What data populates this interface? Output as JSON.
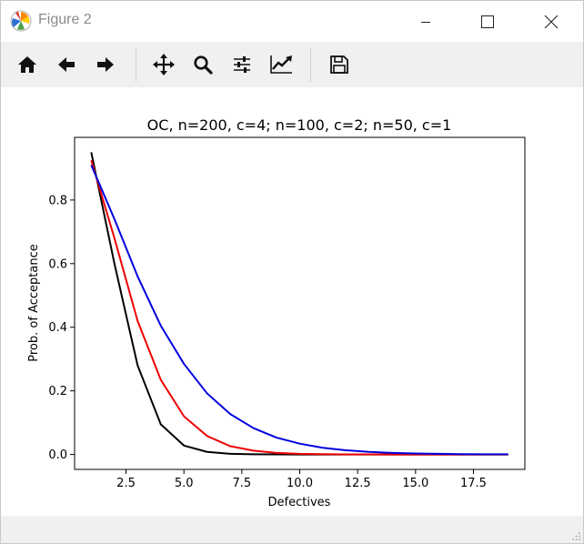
{
  "window": {
    "title": "Figure 2"
  },
  "toolbar": {
    "buttons": [
      {
        "name": "home-button",
        "icon": "home-icon"
      },
      {
        "name": "back-button",
        "icon": "arrow-left-icon"
      },
      {
        "name": "forward-button",
        "icon": "arrow-right-icon"
      },
      {
        "name": "pan-button",
        "icon": "move-icon"
      },
      {
        "name": "zoom-button",
        "icon": "magnifier-icon"
      },
      {
        "name": "subplots-button",
        "icon": "sliders-icon"
      },
      {
        "name": "edit-axes-button",
        "icon": "line-chart-icon"
      },
      {
        "name": "save-button",
        "icon": "floppy-disk-icon"
      }
    ]
  },
  "chart_data": {
    "type": "line",
    "title": "OC, n=200, c=4; n=100, c=2; n=50, c=1",
    "xlabel": "Defectives",
    "ylabel": "Prob. of Acceptance",
    "xlim": [
      0.28,
      19.72
    ],
    "ylim": [
      -0.047,
      0.997
    ],
    "xticks": [
      2.5,
      5.0,
      7.5,
      10.0,
      12.5,
      15.0,
      17.5
    ],
    "xtick_labels": [
      "2.5",
      "5.0",
      "7.5",
      "10.0",
      "12.5",
      "15.0",
      "17.5"
    ],
    "yticks": [
      0.0,
      0.2,
      0.4,
      0.6,
      0.8
    ],
    "ytick_labels": [
      "0.0",
      "0.2",
      "0.4",
      "0.6",
      "0.8"
    ],
    "grid": false,
    "x": [
      1,
      2,
      3,
      4,
      5,
      6,
      7,
      8,
      9,
      10,
      11,
      12,
      13,
      14,
      15,
      16,
      17,
      18,
      19
    ],
    "series": [
      {
        "color": "#000000",
        "values": [
          0.95,
          0.6,
          0.28,
          0.095,
          0.028,
          0.008,
          0.002,
          0.0005,
          0.0001,
          0,
          0,
          0,
          0,
          0,
          0,
          0,
          0,
          0,
          0
        ]
      },
      {
        "color": "#ee0000",
        "values": [
          0.925,
          0.68,
          0.42,
          0.235,
          0.12,
          0.058,
          0.026,
          0.012,
          0.005,
          0.002,
          0.001,
          0.0003,
          0.0001,
          0,
          0,
          0,
          0,
          0,
          0
        ]
      },
      {
        "color": "#0000dd",
        "values": [
          0.91,
          0.74,
          0.56,
          0.405,
          0.285,
          0.192,
          0.127,
          0.083,
          0.053,
          0.034,
          0.021,
          0.013,
          0.008,
          0.005,
          0.003,
          0.002,
          0.001,
          0.0006,
          0.0004
        ]
      }
    ]
  }
}
